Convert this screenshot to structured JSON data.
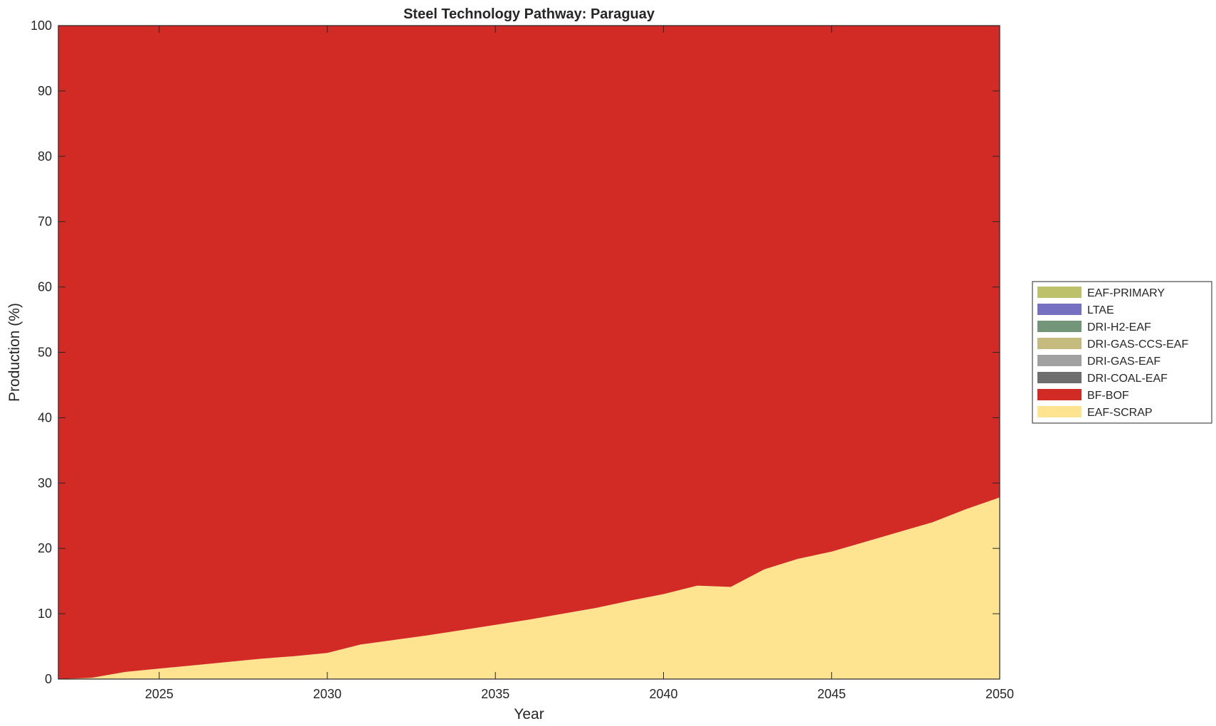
{
  "chart_data": {
    "type": "area",
    "title": "Steel Technology Pathway: Paraguay",
    "xlabel": "Year",
    "ylabel": "Production (%)",
    "xlim": [
      2022,
      2050
    ],
    "ylim": [
      0,
      100
    ],
    "xticks": [
      2025,
      2030,
      2035,
      2040,
      2045,
      2050
    ],
    "yticks": [
      0,
      10,
      20,
      30,
      40,
      50,
      60,
      70,
      80,
      90,
      100
    ],
    "legend_position": "right",
    "x": [
      2022,
      2023,
      2024,
      2025,
      2026,
      2027,
      2028,
      2029,
      2030,
      2031,
      2032,
      2033,
      2034,
      2035,
      2036,
      2037,
      2038,
      2039,
      2040,
      2041,
      2042,
      2043,
      2044,
      2045,
      2046,
      2047,
      2048,
      2049,
      2050
    ],
    "series": [
      {
        "name": "EAF-PRIMARY",
        "color": "#BDC26A",
        "values": [
          0,
          0,
          0,
          0,
          0,
          0,
          0,
          0,
          0,
          0,
          0,
          0,
          0,
          0,
          0,
          0,
          0,
          0,
          0,
          0,
          0,
          0,
          0,
          0,
          0,
          0,
          0,
          0,
          0
        ]
      },
      {
        "name": "LTAE",
        "color": "#7570C0",
        "values": [
          0,
          0,
          0,
          0,
          0,
          0,
          0,
          0,
          0,
          0,
          0,
          0,
          0,
          0,
          0,
          0,
          0,
          0,
          0,
          0,
          0,
          0,
          0,
          0,
          0,
          0,
          0,
          0,
          0
        ]
      },
      {
        "name": "DRI-H2-EAF",
        "color": "#73967A",
        "values": [
          0,
          0,
          0,
          0,
          0,
          0,
          0,
          0,
          0,
          0,
          0,
          0,
          0,
          0,
          0,
          0,
          0,
          0,
          0,
          0,
          0,
          0,
          0,
          0,
          0,
          0,
          0,
          0,
          0
        ]
      },
      {
        "name": "DRI-GAS-CCS-EAF",
        "color": "#C5BB7E",
        "values": [
          0,
          0,
          0,
          0,
          0,
          0,
          0,
          0,
          0,
          0,
          0,
          0,
          0,
          0,
          0,
          0,
          0,
          0,
          0,
          0,
          0,
          0,
          0,
          0,
          0,
          0,
          0,
          0,
          0
        ]
      },
      {
        "name": "DRI-GAS-EAF",
        "color": "#A1A1A1",
        "values": [
          0,
          0,
          0,
          0,
          0,
          0,
          0,
          0,
          0,
          0,
          0,
          0,
          0,
          0,
          0,
          0,
          0,
          0,
          0,
          0,
          0,
          0,
          0,
          0,
          0,
          0,
          0,
          0,
          0
        ]
      },
      {
        "name": "DRI-COAL-EAF",
        "color": "#6E6E6E",
        "values": [
          0,
          0,
          0,
          0,
          0,
          0,
          0,
          0,
          0,
          0,
          0,
          0,
          0,
          0,
          0,
          0,
          0,
          0,
          0,
          0,
          0,
          0,
          0,
          0,
          0,
          0,
          0,
          0,
          0
        ]
      },
      {
        "name": "BF-BOF",
        "color": "#D22A24",
        "values": [
          100,
          99.8,
          98.9,
          98.4,
          97.9,
          97.4,
          96.9,
          96.5,
          96.0,
          94.7,
          94.0,
          93.3,
          92.5,
          91.7,
          90.9,
          90.0,
          89.1,
          88.0,
          87.0,
          85.7,
          85.9,
          83.2,
          81.6,
          80.5,
          79.0,
          77.5,
          76.0,
          74.0,
          72.2
        ]
      },
      {
        "name": "EAF-SCRAP",
        "color": "#FEE391",
        "values": [
          0,
          0.2,
          1.1,
          1.6,
          2.1,
          2.6,
          3.1,
          3.5,
          4.0,
          5.3,
          6.0,
          6.7,
          7.5,
          8.3,
          9.1,
          10.0,
          10.9,
          12.0,
          13.0,
          14.3,
          14.1,
          16.8,
          18.4,
          19.5,
          21.0,
          22.5,
          24.0,
          26.0,
          27.8
        ]
      }
    ]
  }
}
